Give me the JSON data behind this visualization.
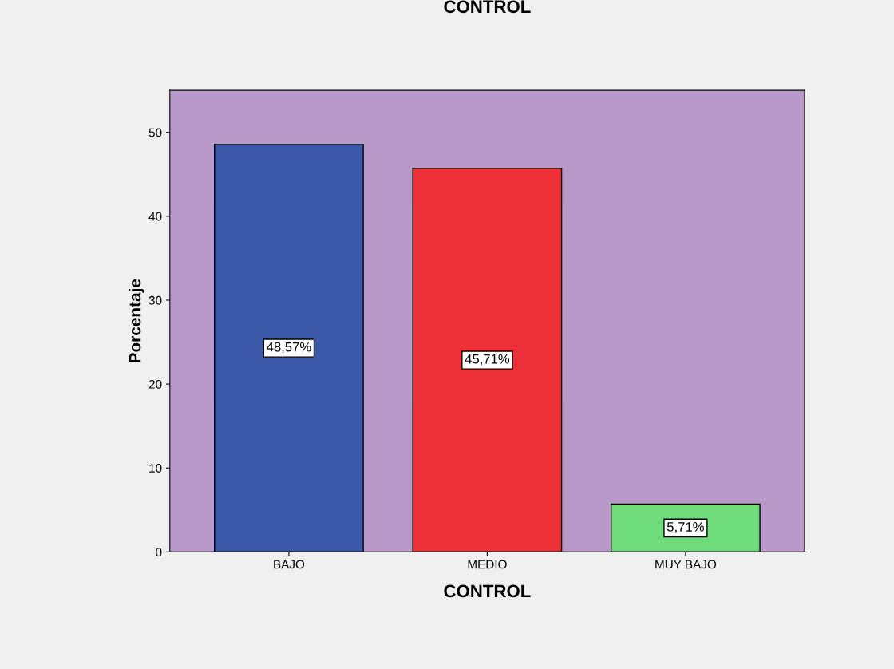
{
  "chart_data": {
    "type": "bar",
    "title": "CONTROL",
    "xlabel": "CONTROL",
    "ylabel": "Porcentaje",
    "categories": [
      "BAJO",
      "MEDIO",
      "MUY BAJO"
    ],
    "values": [
      48.57,
      45.71,
      5.71
    ],
    "colors": [
      "#3c58a8",
      "#ee3139",
      "#6fdc7c"
    ],
    "value_labels": [
      "48,57%",
      "45,71%",
      "5,71%"
    ],
    "ylim": [
      0,
      55
    ],
    "yticks": [
      0,
      10,
      20,
      30,
      40,
      50
    ],
    "grid": false,
    "legend": false
  }
}
